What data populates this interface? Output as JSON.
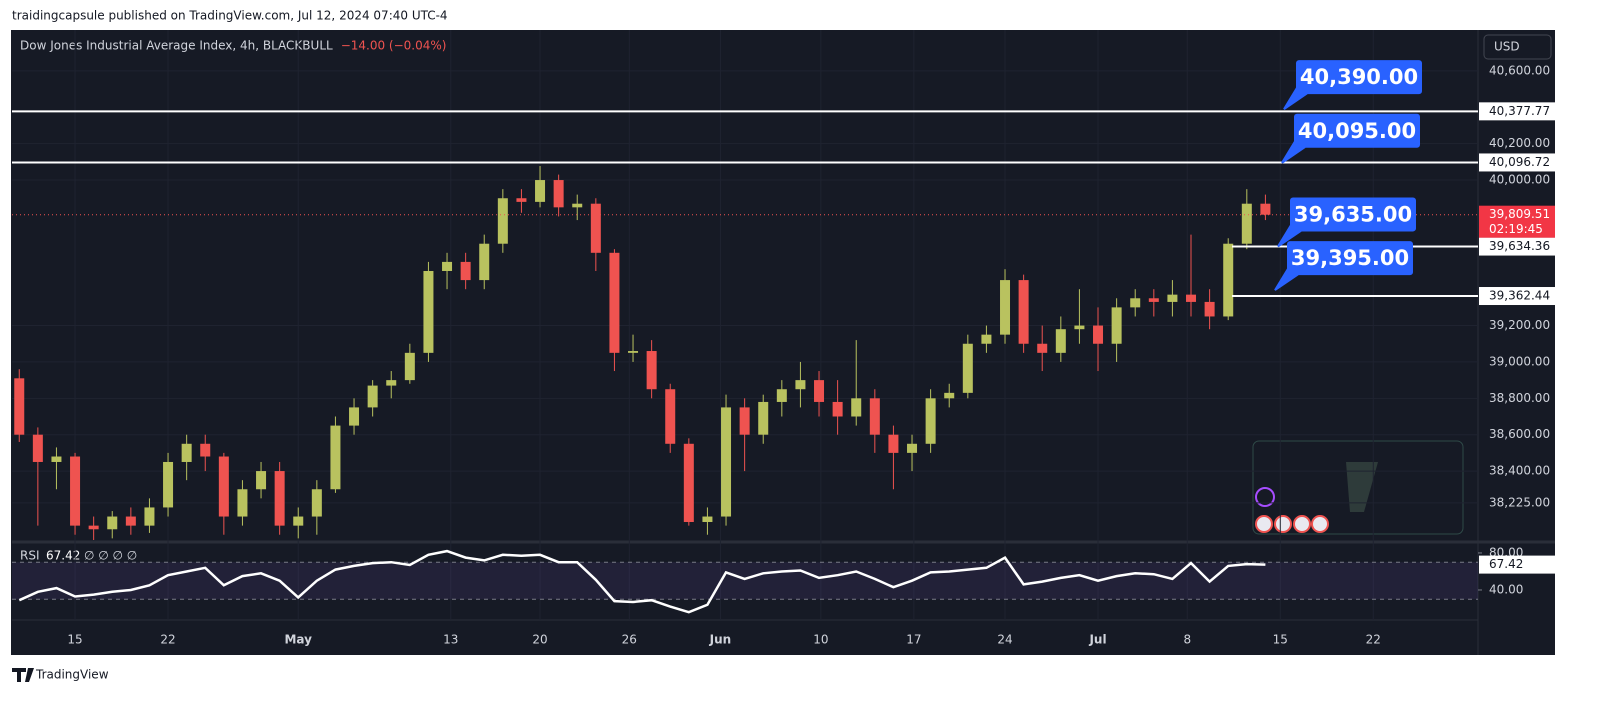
{
  "page": {
    "published": "traidingcapsule published on TradingView.com, Jul 12, 2024 07:40 UTC-4",
    "brand": "TradingView"
  },
  "chart_data": [
    {
      "type": "candlestick",
      "title": "Dow Jones Industrial Average Index, 4h, BLACKBULL",
      "subtitle": "−14.00 (−0.04%)",
      "currency": "USD",
      "x": [
        -3,
        -2,
        -1,
        0,
        1,
        2,
        3,
        4,
        5,
        6,
        7,
        8,
        9,
        10,
        11,
        12,
        13,
        14,
        15,
        16,
        17,
        18,
        19,
        20,
        21,
        22,
        23,
        24,
        25,
        26,
        27,
        28,
        29,
        30,
        31,
        32,
        33,
        34,
        35,
        36,
        37,
        38,
        39,
        40,
        41,
        42,
        43,
        44,
        45,
        46,
        47,
        48,
        49,
        50,
        51,
        52,
        53,
        54,
        55,
        56,
        57,
        58,
        59,
        60,
        61,
        62,
        63,
        64
      ],
      "open": [
        38910,
        38600,
        38450,
        38480,
        38100,
        38080,
        38150,
        38100,
        38200,
        38450,
        38550,
        38480,
        38150,
        38300,
        38400,
        38100,
        38150,
        38300,
        38650,
        38750,
        38870,
        38900,
        39050,
        39500,
        39550,
        39450,
        39650,
        39900,
        39880,
        40000,
        39850,
        39870,
        39600,
        39050,
        39060,
        38850,
        38550,
        38120,
        38150,
        38750,
        38600,
        38780,
        38850,
        38900,
        38780,
        38700,
        38800,
        38600,
        38500,
        38550,
        38800,
        38830,
        39100,
        39150,
        39450,
        39100,
        39050,
        39180,
        39200,
        39100,
        39300,
        39350,
        39330,
        39370,
        39330,
        39250,
        39650,
        39870
      ],
      "high": [
        38960,
        38640,
        38530,
        38500,
        38150,
        38180,
        38200,
        38250,
        38500,
        38600,
        38600,
        38500,
        38350,
        38450,
        38450,
        38200,
        38350,
        38700,
        38800,
        38900,
        38950,
        39100,
        39550,
        39600,
        39600,
        39700,
        39950,
        39950,
        40077,
        40030,
        39920,
        39900,
        39620,
        39150,
        39120,
        38880,
        38580,
        38200,
        38820,
        38800,
        38820,
        38900,
        39000,
        38950,
        38900,
        39120,
        38850,
        38650,
        38600,
        38850,
        38880,
        39150,
        39200,
        39510,
        39480,
        39200,
        39250,
        39400,
        39300,
        39350,
        39400,
        39400,
        39450,
        39700,
        39400,
        39680,
        39950,
        39920
      ],
      "low": [
        38560,
        38100,
        38300,
        38050,
        38020,
        38030,
        38050,
        38060,
        38150,
        38350,
        38400,
        38050,
        38100,
        38250,
        38050,
        38030,
        38050,
        38280,
        38600,
        38700,
        38800,
        38880,
        39000,
        39400,
        39400,
        39400,
        39600,
        39820,
        39850,
        39800,
        39780,
        39500,
        38950,
        39000,
        38800,
        38500,
        38100,
        38050,
        38100,
        38400,
        38550,
        38700,
        38750,
        38700,
        38600,
        38650,
        38500,
        38300,
        38400,
        38500,
        38750,
        38800,
        39050,
        39100,
        39050,
        38950,
        39000,
        39100,
        38950,
        39000,
        39250,
        39250,
        39250,
        39250,
        39180,
        39230,
        39620,
        39780
      ],
      "close": [
        38600,
        38450,
        38480,
        38100,
        38080,
        38150,
        38100,
        38200,
        38450,
        38550,
        38480,
        38150,
        38300,
        38400,
        38100,
        38150,
        38300,
        38650,
        38750,
        38870,
        38900,
        39050,
        39500,
        39550,
        39450,
        39650,
        39900,
        39880,
        40000,
        39850,
        39870,
        39600,
        39050,
        39060,
        38850,
        38550,
        38120,
        38150,
        38750,
        38600,
        38780,
        38850,
        38900,
        38780,
        38700,
        38800,
        38600,
        38500,
        38550,
        38800,
        38830,
        39100,
        39150,
        39450,
        39100,
        39050,
        39180,
        39200,
        39100,
        39300,
        39350,
        39330,
        39370,
        39330,
        39250,
        39650,
        39870,
        39809.51
      ],
      "up_color": "#b9c25f",
      "down_color": "#ef5350",
      "xlim": [
        -3.39,
        75.43
      ],
      "xticks": [
        {
          "value": 0,
          "label": "15"
        },
        {
          "value": 5,
          "label": "22"
        },
        {
          "value": 12,
          "label": "May"
        },
        {
          "value": 20.2,
          "label": "13"
        },
        {
          "value": 25,
          "label": "20"
        },
        {
          "value": 29.8,
          "label": "26"
        },
        {
          "value": 34.7,
          "label": "Jun"
        },
        {
          "value": 40.1,
          "label": "10"
        },
        {
          "value": 45.1,
          "label": "17"
        },
        {
          "value": 50,
          "label": "24"
        },
        {
          "value": 55,
          "label": "Jul"
        },
        {
          "value": 59.8,
          "label": "8"
        },
        {
          "value": 64.8,
          "label": "15"
        },
        {
          "value": 69.8,
          "label": "22"
        }
      ],
      "ylim": [
        38021,
        40825
      ],
      "yticks": [
        {
          "value": 40600,
          "label": "40,600.00"
        },
        {
          "value": 40200,
          "label": "40,200.00"
        },
        {
          "value": 40000,
          "label": "40,000.00"
        },
        {
          "value": 39200,
          "label": "39,200.00"
        },
        {
          "value": 39000,
          "label": "39,000.00"
        },
        {
          "value": 38800,
          "label": "38,800.00"
        },
        {
          "value": 38600,
          "label": "38,600.00"
        },
        {
          "value": 38400,
          "label": "38,400.00"
        },
        {
          "value": 38225,
          "label": "38,225.00"
        }
      ],
      "grid": true,
      "levels": [
        {
          "value": 40377.77,
          "label": "40,377.77"
        },
        {
          "value": 40096.72,
          "label": "40,096.72"
        },
        {
          "value": 39634.36,
          "label": "39,634.36"
        },
        {
          "value": 39362.44,
          "label": "39,362.44"
        }
      ],
      "last_price": {
        "value": 39809.51,
        "label": "39,809.51",
        "countdown": "02:19:45"
      },
      "annotations": [
        {
          "value": 40390,
          "label": "40,390.00"
        },
        {
          "value": 40095,
          "label": "40,095.00"
        },
        {
          "value": 39635,
          "label": "39,635.00"
        },
        {
          "value": 39395,
          "label": "39,395.00"
        }
      ]
    },
    {
      "type": "line",
      "title": "RSI",
      "inputs": "∅ ∅ ∅ ∅",
      "x": [
        -3,
        -2,
        -1,
        0,
        1,
        2,
        3,
        4,
        5,
        6,
        7,
        8,
        9,
        10,
        11,
        12,
        13,
        14,
        15,
        16,
        17,
        18,
        19,
        20,
        21,
        22,
        23,
        24,
        25,
        26,
        27,
        28,
        29,
        30,
        31,
        32,
        33,
        34,
        35,
        36,
        37,
        38,
        39,
        40,
        41,
        42,
        43,
        44,
        45,
        46,
        47,
        48,
        49,
        50,
        51,
        52,
        53,
        54,
        55,
        56,
        57,
        58,
        59,
        60,
        61,
        62,
        63,
        64
      ],
      "series": [
        {
          "name": "RSI",
          "color": "#ffffff",
          "values": [
            29,
            38,
            42,
            33,
            35,
            38,
            40,
            45,
            56,
            60,
            64,
            45,
            55,
            58,
            50,
            32,
            50,
            62,
            66,
            69,
            70,
            67,
            78,
            82,
            75,
            72,
            78,
            77,
            78,
            70,
            70,
            51,
            28,
            27,
            29,
            22,
            16,
            24,
            59,
            52,
            58,
            60,
            61,
            53,
            56,
            60,
            52,
            43,
            50,
            59,
            60,
            62,
            64,
            75,
            46,
            49,
            53,
            56,
            50,
            55,
            58,
            57,
            52,
            69,
            49,
            66,
            68,
            67.42
          ]
        }
      ],
      "last_value": {
        "value": 67.42,
        "label": "67.42"
      },
      "xlim": [
        -3.39,
        75.43
      ],
      "ylim": [
        10.8,
        88.6
      ],
      "yticks": [
        {
          "value": 80,
          "label": "80.00"
        },
        {
          "value": 40,
          "label": "40.00"
        }
      ],
      "bands": [
        70,
        30
      ],
      "band_color": "#7e57c2"
    }
  ]
}
